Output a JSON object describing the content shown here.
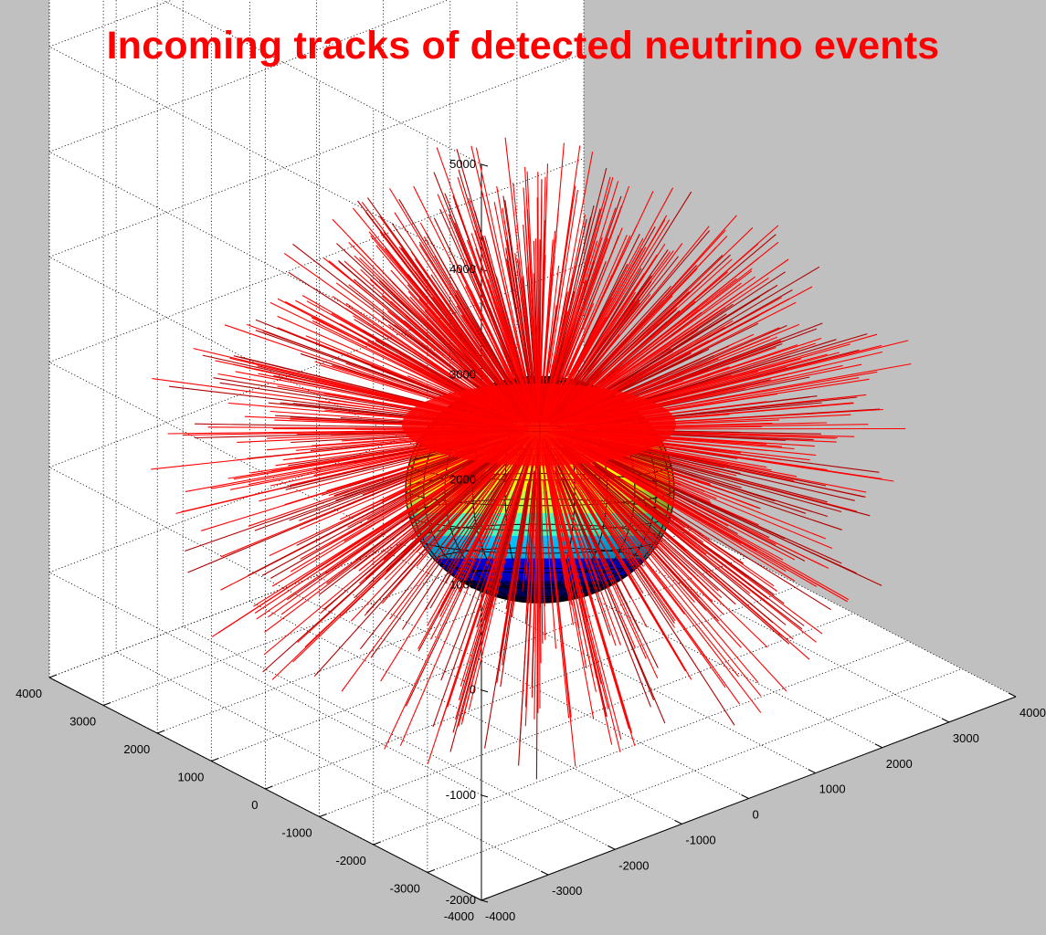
{
  "chart_data": {
    "type": "3d-line",
    "title": "Incoming tracks of detected neutrino events",
    "title_color": "#ff0000",
    "track_color": "#ff0000",
    "background_color": "#c0c0c0",
    "axes_background": "#ffffff",
    "grid": true,
    "x_ticks": [
      "-4000",
      "-3000",
      "-2000",
      "-1000",
      "0",
      "1000",
      "2000",
      "3000",
      "4000"
    ],
    "y_ticks": [
      "-4000",
      "-3000",
      "-2000",
      "-1000",
      "0",
      "1000",
      "2000",
      "3000",
      "4000"
    ],
    "z_ticks": [
      "-2000",
      "-1000",
      "0",
      "1000",
      "2000",
      "3000",
      "4000",
      "5000"
    ],
    "xlim": [
      -4000,
      4000
    ],
    "ylim": [
      -4000,
      4000
    ],
    "zlim": [
      -2000,
      5000
    ],
    "sphere": {
      "center": [
        0,
        0,
        0
      ],
      "colormap": "jet",
      "colormap_colors": [
        "#000080",
        "#0000ff",
        "#00c0ff",
        "#40ffc0",
        "#c0ff40",
        "#ffff00",
        "#ffc000",
        "#ff6000",
        "#e00000",
        "#800000"
      ]
    },
    "tracks_description": "Several hundred straight red line segments radiating outward from the detector sphere"
  }
}
